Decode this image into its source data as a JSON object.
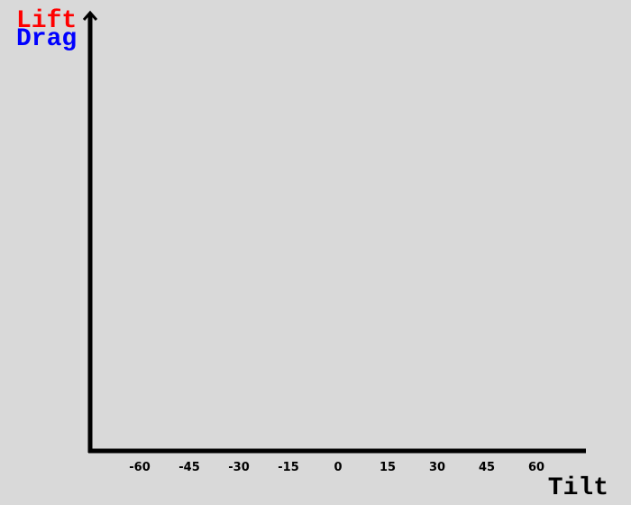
{
  "chart_data": {
    "type": "line",
    "title": "",
    "xlabel": "Tilt",
    "ylabel": "",
    "x_ticks": [
      -60,
      -45,
      -30,
      -15,
      0,
      15,
      30,
      45,
      60
    ],
    "legend": {
      "placement": "top-left",
      "entries": [
        {
          "name": "Lift",
          "color": "#ff0000"
        },
        {
          "name": "Drag",
          "color": "#0000ff"
        }
      ]
    },
    "series": [
      {
        "name": "Lift",
        "values": []
      },
      {
        "name": "Drag",
        "values": []
      }
    ],
    "grid": false
  },
  "colors": {
    "background": "#d9d9d9",
    "axis": "#000000"
  }
}
